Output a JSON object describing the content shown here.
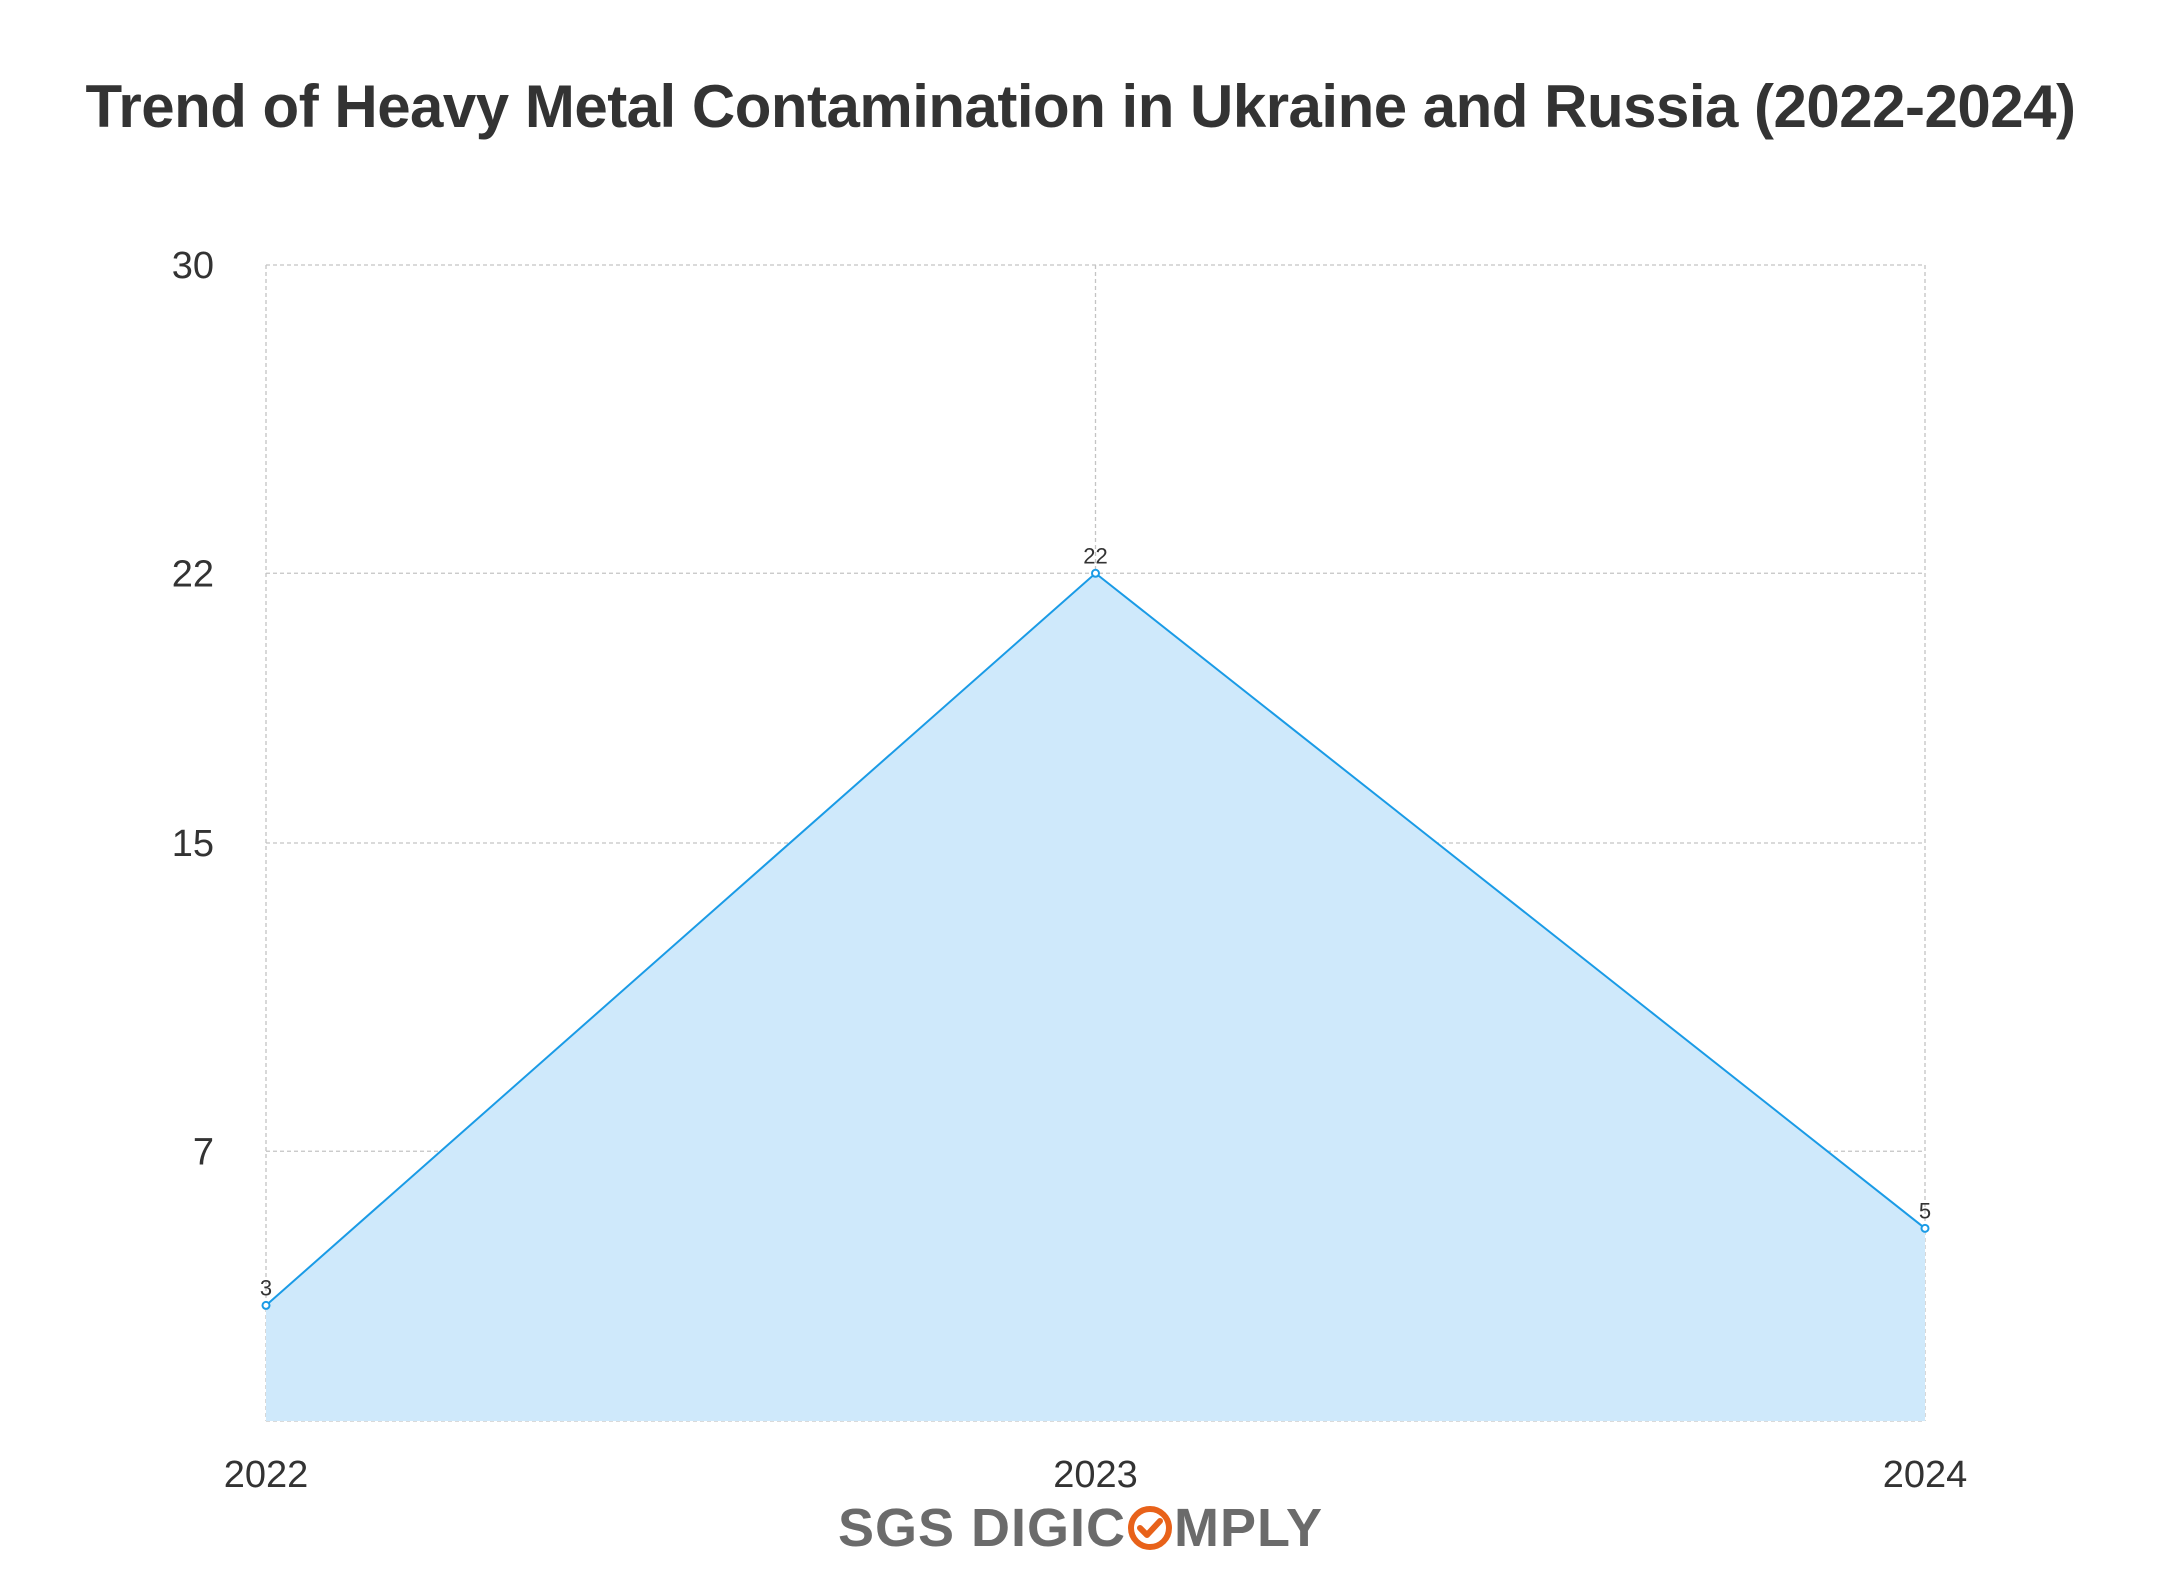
{
  "chart_data": {
    "type": "area",
    "title": "Trend of Heavy Metal Contamination in Ukraine and Russia (2022-2024)",
    "xlabel": "",
    "ylabel": "",
    "categories": [
      "2022",
      "2023",
      "2024"
    ],
    "series": [
      {
        "values": [
          3,
          22,
          5
        ],
        "data_labels": [
          "3",
          "22",
          "5"
        ]
      }
    ],
    "ylim": [
      0,
      30
    ],
    "yticks": [
      7,
      15,
      22,
      30
    ],
    "grid": true,
    "legend": "none",
    "colors": {
      "line": "#1a9be6",
      "fill": "#cfe9fb",
      "grid": "#c4c4c4"
    }
  },
  "branding": {
    "logo_left": "SGS DIGIC",
    "logo_right": "MPLY",
    "logo_icon": "orange-check-circle-icon",
    "logo_color": "#6b6b6b",
    "logo_accent": "#e8621a"
  }
}
